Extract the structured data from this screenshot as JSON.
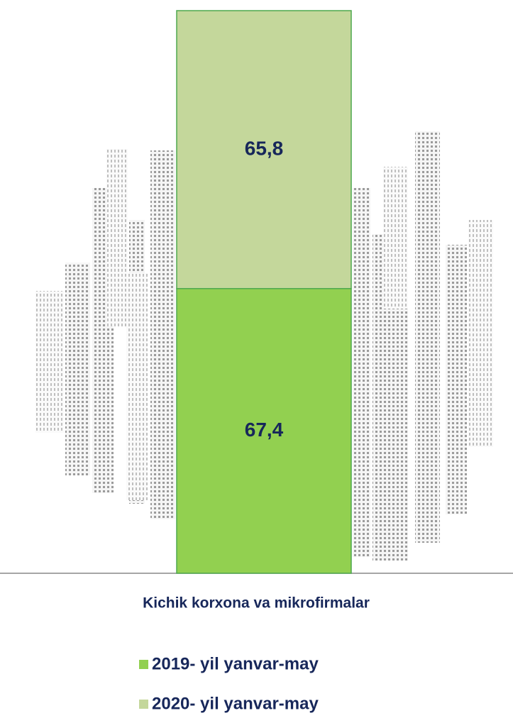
{
  "chart_data": {
    "type": "stacked-bar",
    "categories": [
      "Kichik korxona va mikrofirmalar"
    ],
    "series": [
      {
        "name": "2019- yil yanvar-may",
        "color": "#92d050",
        "values": [
          67.4
        ],
        "value_labels": [
          "67,4"
        ]
      },
      {
        "name": "2020- yil yanvar-may",
        "color": "#c4d79b",
        "values": [
          65.8
        ],
        "value_labels": [
          "65,8"
        ]
      }
    ]
  }
}
